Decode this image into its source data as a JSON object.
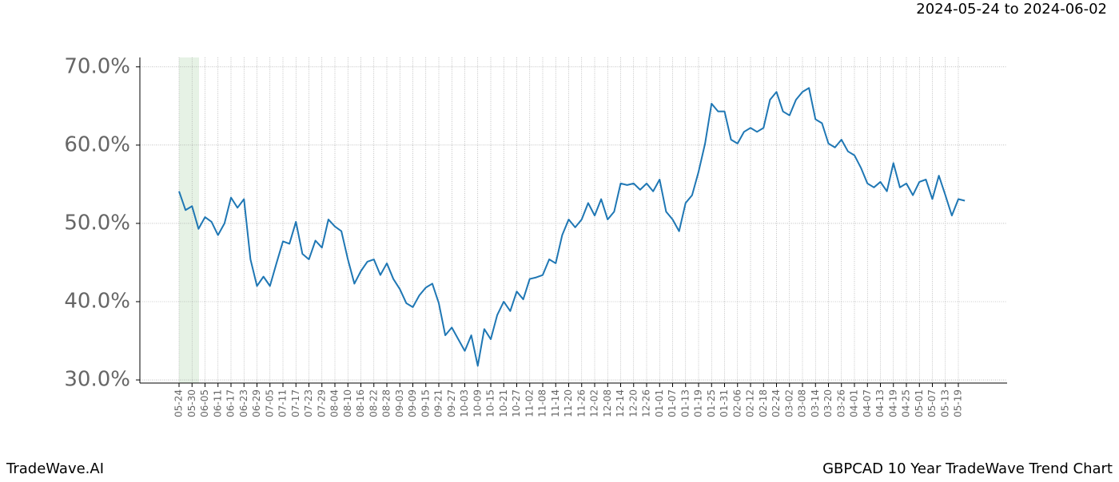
{
  "header": {
    "date_range": "2024-05-24 to 2024-06-02"
  },
  "footer": {
    "brand": "TradeWave.AI",
    "title": "GBPCAD 10 Year TradeWave Trend Chart"
  },
  "chart_data": {
    "type": "line",
    "categories": [
      "05-24",
      null,
      "05-30",
      null,
      "06-05",
      null,
      "06-11",
      null,
      "06-17",
      null,
      "06-23",
      null,
      "06-29",
      null,
      "07-05",
      null,
      "07-11",
      null,
      "07-17",
      null,
      "07-23",
      null,
      "07-29",
      null,
      "08-04",
      null,
      "08-10",
      null,
      "08-16",
      null,
      "08-22",
      null,
      "08-28",
      null,
      "09-03",
      null,
      "09-09",
      null,
      "09-15",
      null,
      "09-21",
      null,
      "09-27",
      null,
      "10-03",
      null,
      "10-09",
      null,
      "10-15",
      null,
      "10-21",
      null,
      "10-27",
      null,
      "11-02",
      null,
      "11-08",
      null,
      "11-14",
      null,
      "11-20",
      null,
      "11-26",
      null,
      "12-02",
      null,
      "12-08",
      null,
      "12-14",
      null,
      "12-20",
      null,
      "12-26",
      null,
      "01-01",
      null,
      "01-07",
      null,
      "01-13",
      null,
      "01-19",
      null,
      "01-25",
      null,
      "01-31",
      null,
      "02-06",
      null,
      "02-12",
      null,
      "02-18",
      null,
      "02-24",
      null,
      "03-02",
      null,
      "03-08",
      null,
      "03-14",
      null,
      "03-20",
      null,
      "03-26",
      null,
      "04-01",
      null,
      "04-07",
      null,
      "04-13",
      null,
      "04-19",
      null,
      "04-25",
      null,
      "05-01",
      null,
      "05-07",
      null,
      "05-13",
      null,
      "05-19",
      null
    ],
    "values": [
      54.1,
      51.7,
      52.2,
      49.3,
      50.8,
      50.2,
      48.5,
      50.0,
      53.3,
      52.0,
      53.1,
      45.4,
      42.0,
      43.2,
      42.0,
      44.9,
      47.7,
      47.4,
      50.2,
      46.1,
      45.4,
      47.8,
      46.9,
      50.5,
      49.6,
      49.0,
      45.4,
      42.3,
      43.9,
      45.1,
      45.4,
      43.4,
      44.9,
      42.9,
      41.6,
      39.8,
      39.3,
      40.8,
      41.8,
      42.3,
      39.8,
      35.7,
      36.7,
      35.2,
      33.7,
      35.7,
      31.8,
      36.5,
      35.2,
      38.3,
      40.0,
      38.8,
      41.3,
      40.3,
      42.9,
      43.1,
      43.4,
      45.4,
      44.9,
      48.5,
      50.5,
      49.5,
      50.5,
      52.6,
      51.0,
      53.1,
      50.5,
      51.5,
      55.1,
      54.9,
      55.1,
      54.3,
      55.1,
      54.1,
      55.6,
      51.5,
      50.5,
      49.0,
      52.6,
      53.6,
      56.6,
      60.2,
      65.3,
      64.3,
      64.3,
      60.7,
      60.2,
      61.7,
      62.2,
      61.7,
      62.2,
      65.8,
      66.8,
      64.3,
      63.8,
      65.8,
      66.8,
      67.3,
      63.3,
      62.8,
      60.2,
      59.7,
      60.7,
      59.2,
      58.7,
      57.1,
      55.1,
      54.6,
      55.3,
      54.1,
      57.7,
      54.6,
      55.1,
      53.6,
      55.3,
      55.6,
      53.1,
      56.1,
      53.6,
      51.0,
      53.1,
      52.9
    ],
    "color": "#1f77b4",
    "ylim": [
      29.6,
      71.2
    ],
    "yticks": [
      {
        "value": 30,
        "label": "30.0%"
      },
      {
        "value": 40,
        "label": "40.0%"
      },
      {
        "value": 50,
        "label": "50.0%"
      },
      {
        "value": 60,
        "label": "60.0%"
      },
      {
        "value": 70,
        "label": "70.0%"
      }
    ],
    "grid": true
  }
}
